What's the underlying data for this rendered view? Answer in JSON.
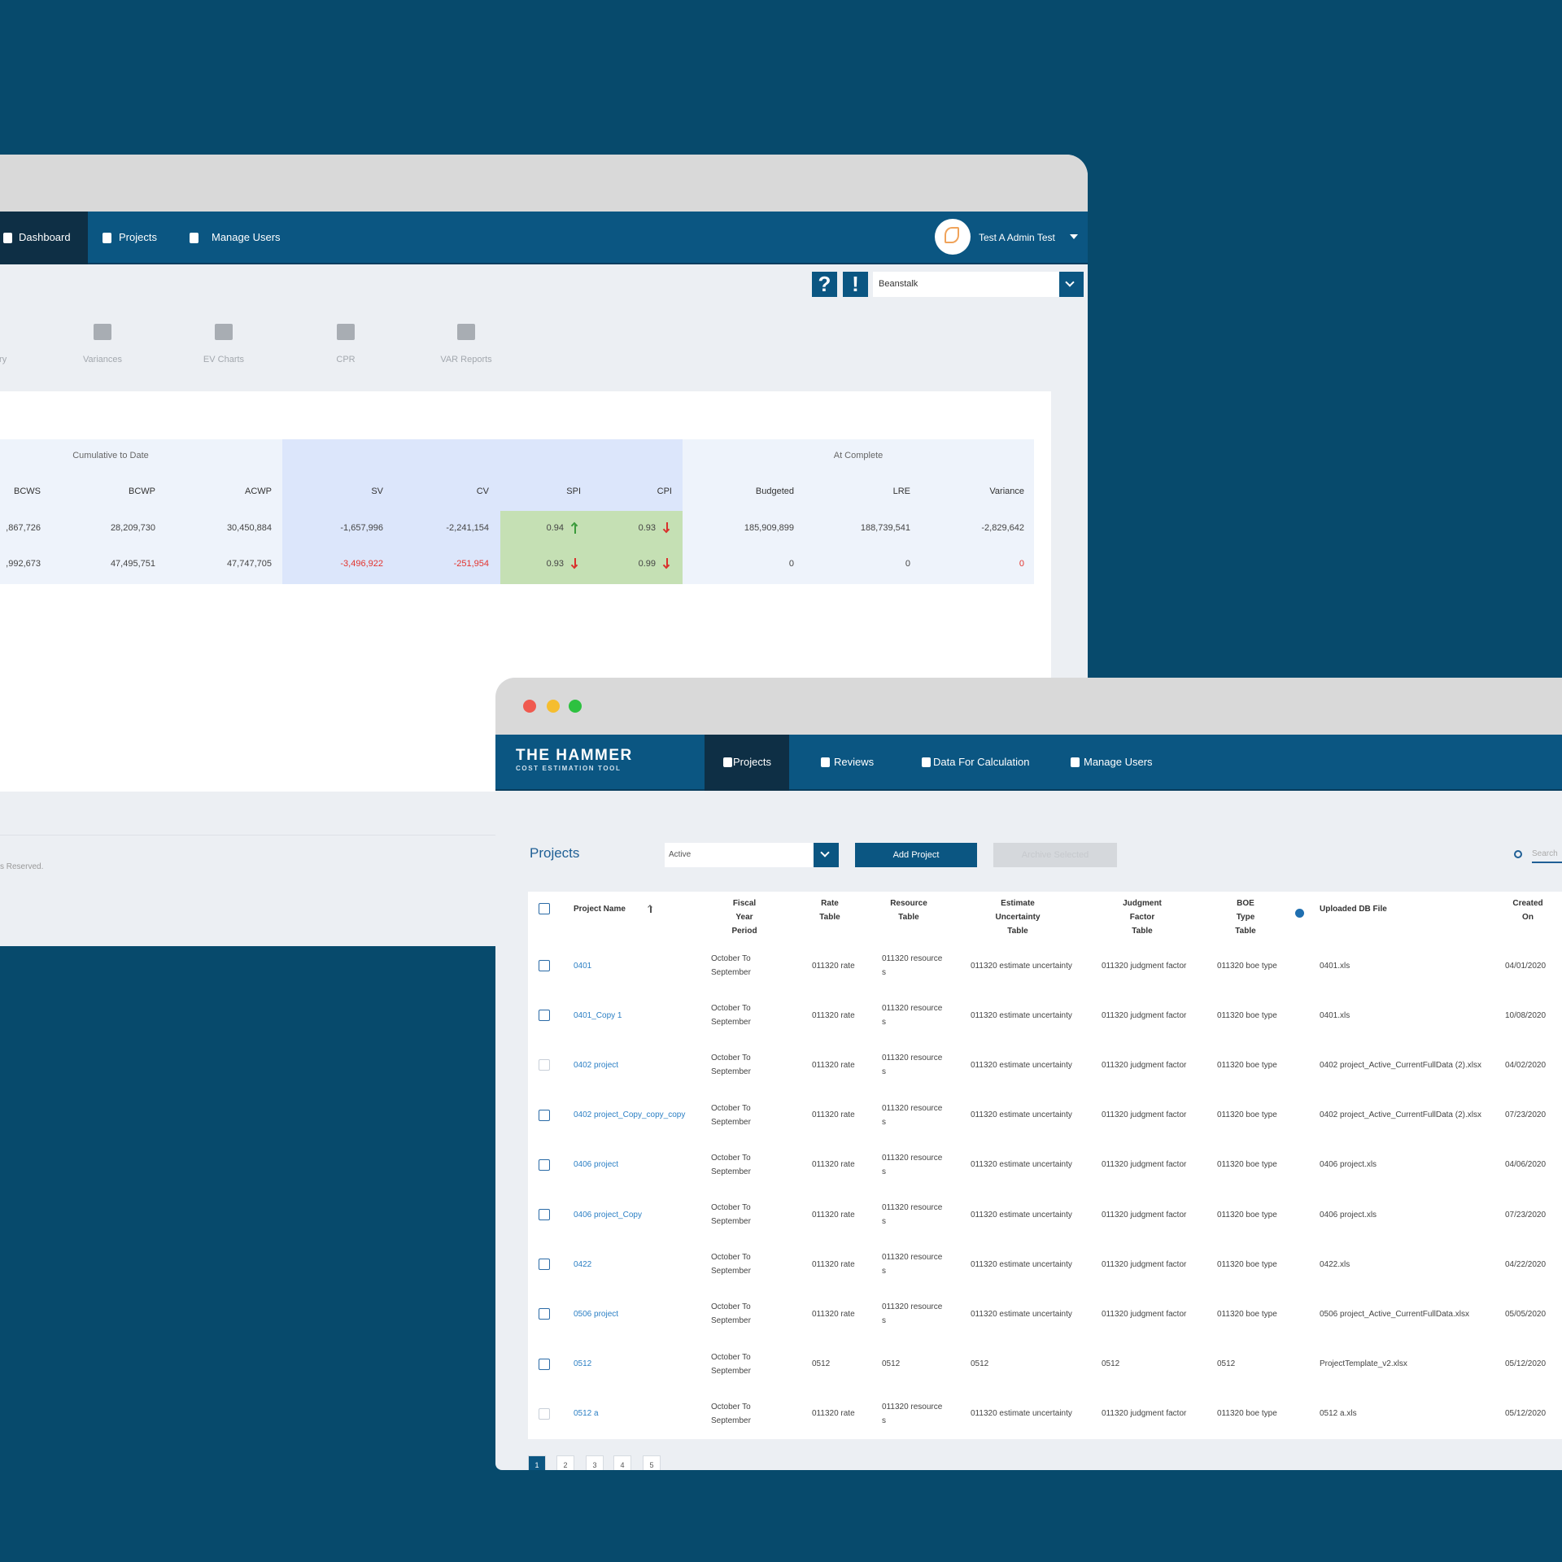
{
  "back_window": {
    "nav": [
      "Dashboard",
      "Projects",
      "Manage Users"
    ],
    "user": "Test A Admin Test",
    "help_icons": [
      "?",
      "!"
    ],
    "select": "Beanstalk",
    "tabs": [
      "mary",
      "Variances",
      "EV Charts",
      "CPR",
      "VAR Reports"
    ],
    "table": {
      "groups": [
        "Cumulative to Date",
        "At Complete"
      ],
      "headers": [
        "BCWS",
        "BCWP",
        "ACWP",
        "SV",
        "CV",
        "SPI",
        "CPI",
        "Budgeted",
        "LRE",
        "Variance"
      ],
      "rows": [
        [
          ",867,726",
          "28,209,730",
          "30,450,884",
          "-1,657,996",
          "-2,241,154",
          "0.94",
          "0.93",
          "185,909,899",
          "188,739,541",
          "-2,829,642"
        ],
        [
          ",992,673",
          "47,495,751",
          "47,747,705",
          "-3,496,922",
          "-251,954",
          "0.93",
          "0.99",
          "0",
          "0",
          "0"
        ]
      ]
    },
    "footer": "s Reserved."
  },
  "front_window": {
    "logo": "THE HAMMER",
    "logo_sub": "COST ESTIMATION TOOL",
    "nav": [
      "Projects",
      "Reviews",
      "Data For Calculation",
      "Manage Users"
    ],
    "page_title": "Projects",
    "filter": "Active",
    "add_button": "Add Project",
    "archive_button": "Archive Selected",
    "search": "Search",
    "table": {
      "headers": [
        "Project Name",
        "Fiscal Year Period",
        "Rate Table",
        "Resource Table",
        "Estimate Uncertainty Table",
        "Judgment Factor Table",
        "BOE Type Table",
        "Uploaded DB File",
        "Created On"
      ],
      "rows": [
        [
          "0401",
          "October To September",
          "011320 rate",
          "011320 resources",
          "011320 estimate uncertainty",
          "011320 judgment factor",
          "011320 boe type",
          "0401.xls",
          "04/01/2020"
        ],
        [
          "0401_Copy 1",
          "October To September",
          "011320 rate",
          "011320 resources",
          "011320 estimate uncertainty",
          "011320 judgment factor",
          "011320 boe type",
          "0401.xls",
          "10/08/2020"
        ],
        [
          "0402 project",
          "October To September",
          "011320 rate",
          "011320 resources",
          "011320 estimate uncertainty",
          "011320 judgment factor",
          "011320 boe type",
          "0402 project_Active_CurrentFullData (2).xlsx",
          "04/02/2020"
        ],
        [
          "0402 project_Copy_copy_copy",
          "October To September",
          "011320 rate",
          "011320 resources",
          "011320 estimate uncertainty",
          "011320 judgment factor",
          "011320 boe type",
          "0402 project_Active_CurrentFullData (2).xlsx",
          "07/23/2020"
        ],
        [
          "0406 project",
          "October To September",
          "011320 rate",
          "011320 resources",
          "011320 estimate uncertainty",
          "011320 judgment factor",
          "011320 boe type",
          "0406 project.xls",
          "04/06/2020"
        ],
        [
          "0406 project_Copy",
          "October To September",
          "011320 rate",
          "011320 resources",
          "011320 estimate uncertainty",
          "011320 judgment factor",
          "011320 boe type",
          "0406 project.xls",
          "07/23/2020"
        ],
        [
          "0422",
          "October To September",
          "011320 rate",
          "011320 resources",
          "011320 estimate uncertainty",
          "011320 judgment factor",
          "011320 boe type",
          "0422.xls",
          "04/22/2020"
        ],
        [
          "0506 project",
          "October To September",
          "011320 rate",
          "011320 resources",
          "011320 estimate uncertainty",
          "011320 judgment factor",
          "011320 boe type",
          "0506 project_Active_CurrentFullData.xlsx",
          "05/05/2020"
        ],
        [
          "0512",
          "October To September",
          "0512",
          "0512",
          "0512",
          "0512",
          "0512",
          "ProjectTemplate_v2.xlsx",
          "05/12/2020"
        ],
        [
          "0512 a",
          "October To September",
          "011320 rate",
          "011320 resources",
          "011320 estimate uncertainty",
          "011320 judgment factor",
          "011320 boe type",
          "0512 a.xls",
          "05/12/2020"
        ]
      ]
    },
    "pagination": [
      "1",
      "2",
      "3",
      "4",
      "5"
    ]
  }
}
